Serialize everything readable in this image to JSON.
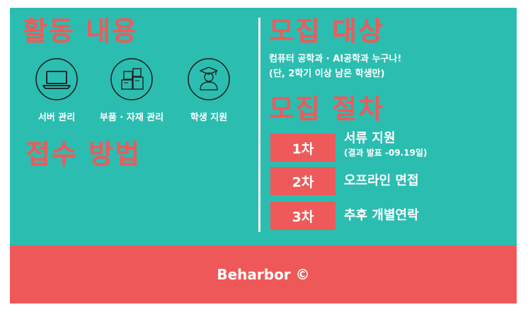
{
  "sections": {
    "activity_title": "활동 내용",
    "recruit_target_title": "모집 대상",
    "recruit_process_title": "모집 절차",
    "apply_method_title": "접수 방법"
  },
  "activities": [
    {
      "label": "서버 관리",
      "icon": "laptop-icon"
    },
    {
      "label": "부품 · 자재 관리",
      "icon": "boxes-icon"
    },
    {
      "label": "학생 지원",
      "icon": "graduate-icon"
    }
  ],
  "recruit_target": {
    "line1": "컴퓨터 공학과  · AI공학과 누구나!",
    "line2": "(단, 2학기 이상 남은 학생만)"
  },
  "steps": [
    {
      "badge": "1차",
      "title": "서류 지원",
      "note": "(결과 발표 -09.19일)"
    },
    {
      "badge": "2차",
      "title": "오프라인 면접",
      "note": ""
    },
    {
      "badge": "3차",
      "title": "추후 개별연락",
      "note": ""
    }
  ],
  "footer": {
    "text": "Beharbor ©"
  },
  "colors": {
    "teal": "#2bbdb0",
    "coral": "#ee5a5a",
    "white": "#ffffff"
  }
}
